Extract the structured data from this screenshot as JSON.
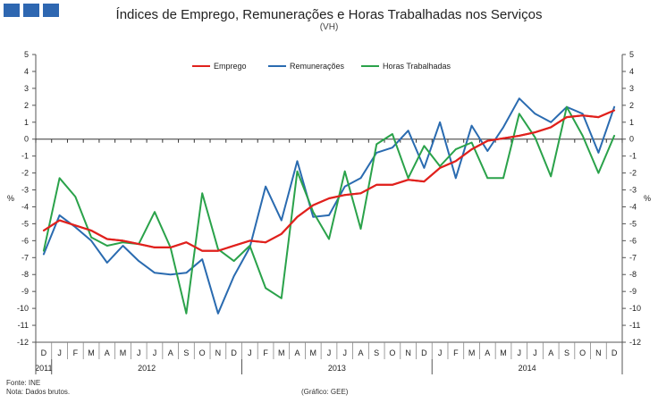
{
  "header": {
    "title": "Índices de Emprego, Remunerações e Horas Trabalhadas nos Serviços",
    "subtitle": "(VH)"
  },
  "footer": {
    "source": "Fonte: INE",
    "note": "Nota: Dados brutos.",
    "credit": "(Gráfico: GEE)"
  },
  "colors": {
    "emprego": "#e0211d",
    "remuneracoes": "#2a6bb0",
    "horas": "#2aa24a",
    "logo": "#2e67b1"
  },
  "chart_data": {
    "type": "line",
    "title": "Índices de Emprego, Remunerações e Horas Trabalhadas nos Serviços",
    "subtitle": "(VH)",
    "ylabel": "%",
    "y2label": "%",
    "ylim": [
      -12,
      5
    ],
    "yticks": [
      5,
      4,
      3,
      2,
      1,
      0,
      -1,
      -2,
      -3,
      -4,
      -5,
      -6,
      -7,
      -8,
      -9,
      -10,
      -11,
      -12
    ],
    "legend_position": "top-center",
    "categories": [
      "D",
      "J",
      "F",
      "M",
      "A",
      "M",
      "J",
      "J",
      "A",
      "S",
      "O",
      "N",
      "D",
      "J",
      "F",
      "M",
      "A",
      "M",
      "J",
      "J",
      "A",
      "S",
      "O",
      "N",
      "D",
      "J",
      "F",
      "M",
      "A",
      "M",
      "J",
      "J",
      "A",
      "S",
      "O",
      "N",
      "D"
    ],
    "years": [
      {
        "label": "2011",
        "start": 0,
        "end": 0
      },
      {
        "label": "2012",
        "start": 1,
        "end": 12
      },
      {
        "label": "2013",
        "start": 13,
        "end": 24
      },
      {
        "label": "2014",
        "start": 25,
        "end": 36
      }
    ],
    "series": [
      {
        "name": "Emprego",
        "color_key": "emprego",
        "values": [
          -5.4,
          -4.8,
          -5.1,
          -5.4,
          -5.9,
          -6.0,
          -6.2,
          -6.4,
          -6.4,
          -6.1,
          -6.6,
          -6.6,
          -6.3,
          -6.0,
          -6.1,
          -5.6,
          -4.6,
          -3.9,
          -3.5,
          -3.3,
          -3.2,
          -2.7,
          -2.7,
          -2.4,
          -2.5,
          -1.7,
          -1.3,
          -0.6,
          -0.1,
          0.05,
          0.2,
          0.4,
          0.7,
          1.3,
          1.4,
          1.3,
          1.7
        ]
      },
      {
        "name": "Remunerações",
        "color_key": "remuneracoes",
        "values": [
          -6.8,
          -4.5,
          -5.2,
          -6.0,
          -7.3,
          -6.3,
          -7.2,
          -7.9,
          -8.0,
          -7.9,
          -7.1,
          -10.3,
          -8.1,
          -6.4,
          -2.8,
          -4.8,
          -1.3,
          -4.6,
          -4.5,
          -2.8,
          -2.3,
          -0.8,
          -0.5,
          0.5,
          -1.7,
          1.0,
          -2.3,
          0.8,
          -0.7,
          0.7,
          2.4,
          1.5,
          1.0,
          1.9,
          1.5,
          -0.8,
          1.9
        ]
      },
      {
        "name": "Horas Trabalhadas",
        "color_key": "horas",
        "values": [
          -6.6,
          -2.3,
          -3.4,
          -5.8,
          -6.3,
          -6.1,
          -6.2,
          -4.3,
          -6.4,
          -10.3,
          -3.2,
          -6.5,
          -7.2,
          -6.3,
          -8.8,
          -9.4,
          -1.9,
          -4.3,
          -5.9,
          -1.9,
          -5.3,
          -0.3,
          0.3,
          -2.3,
          -0.4,
          -1.6,
          -0.6,
          -0.2,
          -2.3,
          -2.3,
          1.5,
          0.1,
          -2.2,
          1.9,
          0.2,
          -2.0,
          0.2
        ]
      }
    ]
  }
}
